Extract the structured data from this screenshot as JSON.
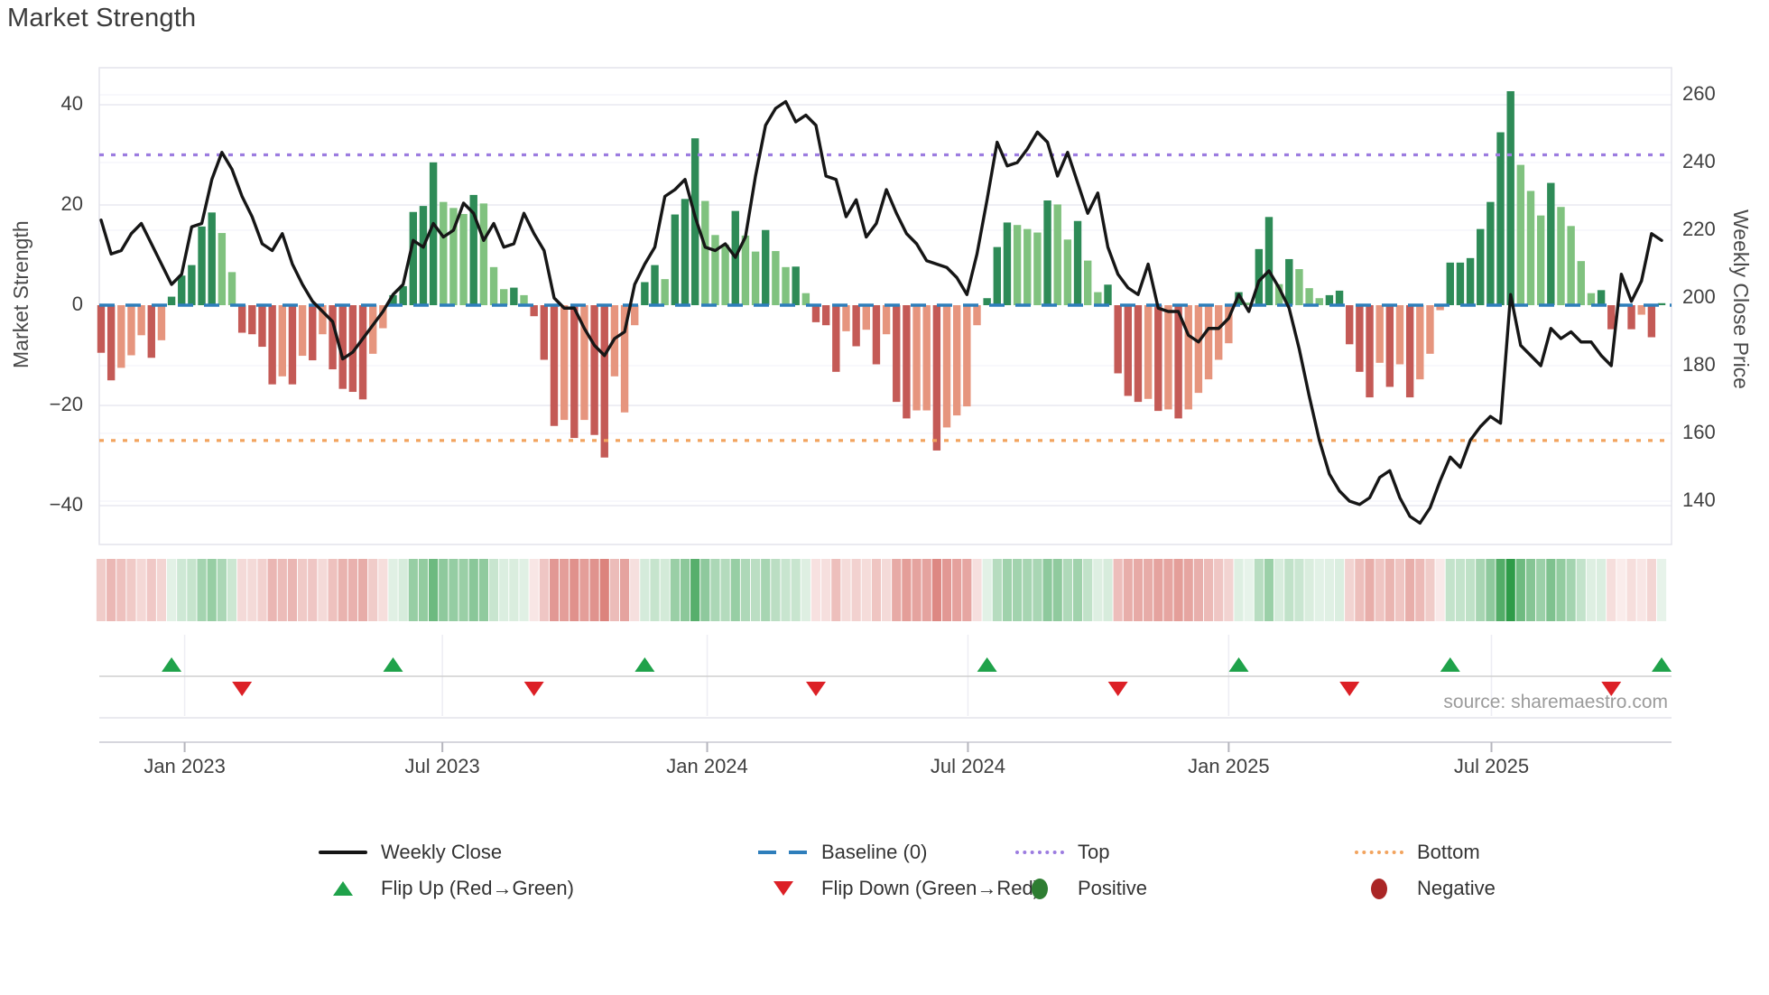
{
  "title": "Market Strength",
  "source_note": "source: sharemaestro.com",
  "axes": {
    "left_title": "Market Strength",
    "right_title": "Weekly Close Price"
  },
  "legend": {
    "items": [
      {
        "label": "Weekly Close",
        "symbol": "line-black"
      },
      {
        "label": "Baseline (0)",
        "symbol": "dash-blue"
      },
      {
        "label": "Top",
        "symbol": "dot-purple"
      },
      {
        "label": "Bottom",
        "symbol": "dot-orange"
      },
      {
        "label": "Flip Up (Red→Green)",
        "symbol": "triangle-up-green"
      },
      {
        "label": "Flip Down (Green→Red)",
        "symbol": "triangle-down-red"
      },
      {
        "label": "Positive",
        "symbol": "circle-green"
      },
      {
        "label": "Negative",
        "symbol": "circle-darkred"
      }
    ]
  },
  "colors": {
    "bar_dark_green": "#2e8b57",
    "bar_light_green": "#80c27f",
    "bar_dark_red": "#c45a56",
    "bar_light_red": "#e6957e",
    "price_line": "#161616",
    "baseline": "#2e7ebb",
    "top_line": "#9c7ce0",
    "bottom_line": "#f2a45f",
    "flip_up": "#1fa24a",
    "flip_down": "#dc2026",
    "grid": "#e9e9f1",
    "grid_faint": "#f4f4f9",
    "axis_text": "#3f3f3f",
    "heat_green_rgb": "34,150,62",
    "heat_red_rgb": "205,78,70"
  },
  "chart_data": {
    "type": [
      "bar",
      "line",
      "heatmap",
      "markers"
    ],
    "title": "Market Strength",
    "x_unit": "week",
    "n_weeks": 156,
    "ylabel_left": "Market Strength",
    "ylabel_right": "Weekly Close Price",
    "left_ticks": [
      40,
      20,
      0,
      -20,
      -40
    ],
    "left_tick_labels": [
      "40",
      "20",
      "0",
      "−20",
      "−40"
    ],
    "right_ticks": [
      260,
      240,
      220,
      200,
      180,
      160,
      140
    ],
    "x_ticks": [
      {
        "label": "Jan 2023",
        "week": 8.3
      },
      {
        "label": "Jul 2023",
        "week": 33.9
      },
      {
        "label": "Jan 2024",
        "week": 60.2
      },
      {
        "label": "Jul 2024",
        "week": 86.1
      },
      {
        "label": "Jan 2025",
        "week": 112.0
      },
      {
        "label": "Jul 2025",
        "week": 138.1
      }
    ],
    "top_line": 30,
    "bottom_line": -27,
    "baseline": 0,
    "legend_position": "bottom-center, 2 rows",
    "grid": "on",
    "strength_bars": {
      "name": "Market Strength (weekly oscillator bars)",
      "shade_legend": {
        "dg": "dark green (positive, strengthening)",
        "lg": "light green (positive, weakening)",
        "dr": "dark red (negative, strengthening)",
        "lr": "light red (negative, weakening)"
      },
      "values": [
        -9.5,
        -15,
        -12.5,
        -10,
        -6,
        -10.5,
        -7,
        1.7,
        5.9,
        8,
        15.7,
        18.5,
        14.4,
        6.6,
        -5.5,
        -5.8,
        -8.3,
        -15.8,
        -14.2,
        -15.8,
        -10.1,
        -11,
        -5.8,
        -12.8,
        -16.7,
        -17.3,
        -18.8,
        -9.7,
        -4.6,
        2,
        3.8,
        18.6,
        19.8,
        28.5,
        20.6,
        19.4,
        18.2,
        22,
        20.3,
        7.6,
        3.2,
        3.5,
        2,
        -2.2,
        -10.9,
        -24.1,
        -22.9,
        -26.5,
        -22.9,
        -25.9,
        -30.4,
        -14.2,
        -21.4,
        -4,
        4.6,
        8,
        5.2,
        18.1,
        21.2,
        33.3,
        20.8,
        14,
        12.1,
        18.8,
        13.9,
        10.7,
        15,
        10.8,
        7.6,
        7.7,
        2.4,
        -3.4,
        -4,
        -13.3,
        -5.2,
        -8.2,
        -4.9,
        -11.8,
        -5.8,
        -19.3,
        -22.6,
        -21,
        -21,
        -29,
        -24.4,
        -22,
        -20.2,
        -4,
        1.4,
        11.6,
        16.5,
        16,
        15.2,
        14.5,
        20.9,
        20.1,
        13.1,
        16.8,
        8.9,
        2.6,
        4.1,
        -13.6,
        -18.1,
        -19.3,
        -18.7,
        -21.1,
        -20.8,
        -22.6,
        -20.8,
        -17.5,
        -14.8,
        -10.9,
        -7.6,
        2.6,
        0.5,
        11.2,
        17.6,
        4.2,
        9.2,
        7.2,
        3.4,
        1.4,
        2,
        2.9,
        -7.8,
        -13.3,
        -18.4,
        -11.5,
        -16.3,
        -11.8,
        -18.4,
        -14.8,
        -9.7,
        -1,
        8.5,
        8.5,
        9.4,
        15.2,
        20.6,
        34.5,
        42.7,
        28,
        22.8,
        17.9,
        24.4,
        19.6,
        15.8,
        8.8,
        2.4,
        3,
        -4.8,
        -0.3,
        -4.8,
        -1.9,
        -6.4,
        0.4
      ],
      "shades": [
        "dr",
        "dr",
        "lr",
        "lr",
        "lr",
        "dr",
        "lr",
        "dg",
        "dg",
        "dg",
        "dg",
        "dg",
        "lg",
        "lg",
        "dr",
        "dr",
        "dr",
        "dr",
        "lr",
        "dr",
        "lr",
        "dr",
        "lr",
        "dr",
        "dr",
        "dr",
        "dr",
        "lr",
        "lr",
        "dg",
        "dg",
        "dg",
        "dg",
        "dg",
        "lg",
        "lg",
        "lg",
        "dg",
        "lg",
        "lg",
        "lg",
        "dg",
        "lg",
        "dr",
        "dr",
        "dr",
        "lr",
        "dr",
        "lr",
        "dr",
        "dr",
        "lr",
        "lr",
        "lr",
        "dg",
        "dg",
        "lg",
        "dg",
        "dg",
        "dg",
        "lg",
        "lg",
        "lg",
        "dg",
        "lg",
        "lg",
        "dg",
        "lg",
        "lg",
        "dg",
        "lg",
        "dr",
        "dr",
        "dr",
        "lr",
        "dr",
        "lr",
        "dr",
        "lr",
        "dr",
        "dr",
        "lr",
        "lr",
        "dr",
        "lr",
        "lr",
        "lr",
        "lr",
        "dg",
        "dg",
        "dg",
        "lg",
        "lg",
        "lg",
        "dg",
        "lg",
        "lg",
        "dg",
        "lg",
        "lg",
        "dg",
        "dr",
        "dr",
        "dr",
        "lr",
        "dr",
        "lr",
        "dr",
        "lr",
        "lr",
        "lr",
        "lr",
        "lr",
        "dg",
        "lg",
        "dg",
        "dg",
        "lg",
        "dg",
        "lg",
        "lg",
        "lg",
        "dg",
        "dg",
        "dr",
        "dr",
        "dr",
        "lr",
        "dr",
        "lr",
        "dr",
        "lr",
        "lr",
        "lr",
        "dg",
        "dg",
        "dg",
        "dg",
        "dg",
        "dg",
        "dg",
        "lg",
        "lg",
        "lg",
        "dg",
        "lg",
        "lg",
        "lg",
        "lg",
        "dg",
        "dr",
        "lr",
        "dr",
        "lr",
        "dr",
        "dg"
      ]
    },
    "weekly_close": {
      "name": "Weekly Close",
      "values": [
        223,
        213,
        214,
        219,
        222,
        216,
        210,
        204,
        207,
        221,
        222,
        235,
        243,
        238,
        230,
        224,
        216,
        214,
        219,
        210,
        204,
        199,
        196,
        193,
        182,
        184,
        188,
        192,
        196,
        201,
        204,
        217,
        215,
        222,
        218,
        220,
        228,
        225,
        217,
        222,
        215,
        216,
        225,
        219,
        214,
        200,
        197,
        197,
        191,
        186,
        183,
        188,
        190,
        204,
        210,
        215,
        230,
        232,
        235,
        224,
        215,
        214,
        216,
        212,
        218,
        236,
        251,
        256,
        258,
        252,
        254,
        251,
        236,
        235,
        224,
        229,
        218,
        222,
        232,
        225,
        219,
        216,
        211,
        210,
        209,
        206,
        201,
        213,
        229,
        246,
        239,
        240,
        244,
        249,
        246,
        236,
        243,
        234,
        225,
        231,
        215,
        207,
        203,
        201,
        210,
        197,
        196,
        196,
        189,
        187,
        191,
        191,
        194,
        201,
        196,
        205,
        208,
        203,
        197,
        185,
        171,
        158,
        148,
        143,
        140,
        139,
        141,
        147,
        149,
        141,
        135.5,
        133.5,
        138,
        146,
        153,
        150,
        158,
        162,
        165,
        163,
        201,
        186,
        183,
        180,
        191,
        188,
        190,
        187,
        187,
        183,
        180,
        207,
        199,
        205,
        219,
        217
      ]
    },
    "heatmap": {
      "name": "Strength heatmap strip",
      "derived_from": "strength_bars.values (green positive / red negative, opacity by magnitude)"
    },
    "flip_markers": {
      "name": "Flip markers",
      "derived_from": "sign changes of strength_bars.values",
      "up_weeks": [
        7,
        29,
        54,
        88,
        113,
        134,
        155
      ],
      "down_weeks": [
        14,
        43,
        71,
        101,
        124,
        150
      ]
    }
  }
}
